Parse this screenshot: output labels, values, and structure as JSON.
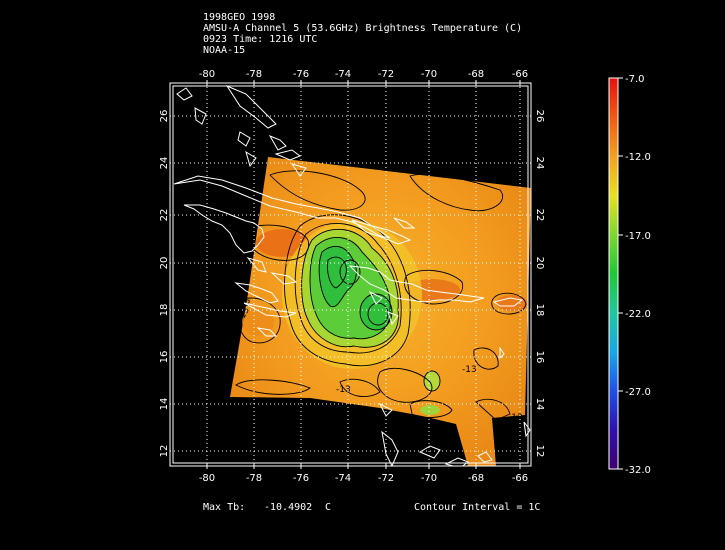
{
  "header": {
    "line1": "1998GEO 1998",
    "line2": "AMSU-A Channel 5 (53.6GHz) Brightness Temperature (C)",
    "line3": "0923 Time: 1216 UTC",
    "line4": "NOAA-15"
  },
  "axes": {
    "lon_ticks": [
      "-80",
      "-78",
      "-76",
      "-74",
      "-72",
      "-70",
      "-68",
      "-66"
    ],
    "lat_ticks": [
      "12",
      "14",
      "16",
      "18",
      "20",
      "22",
      "24",
      "26"
    ]
  },
  "contours": {
    "label_values": [
      "-13",
      "-13",
      "-13",
      "-12",
      "-13"
    ]
  },
  "colorbar": {
    "tick_labels": [
      "-7.0",
      "-12.0",
      "-17.0",
      "-22.0",
      "-27.0",
      "-32.0"
    ],
    "range": [
      -32.0,
      -7.0
    ]
  },
  "footer": {
    "max_label": "Max Tb:",
    "max_value": "-10.4902",
    "max_unit": "C",
    "contour_interval": "Contour Interval = 1C"
  },
  "colors": {
    "background": "#000000",
    "warm_field": "#f5a623",
    "cold_core": "#22c43a"
  }
}
